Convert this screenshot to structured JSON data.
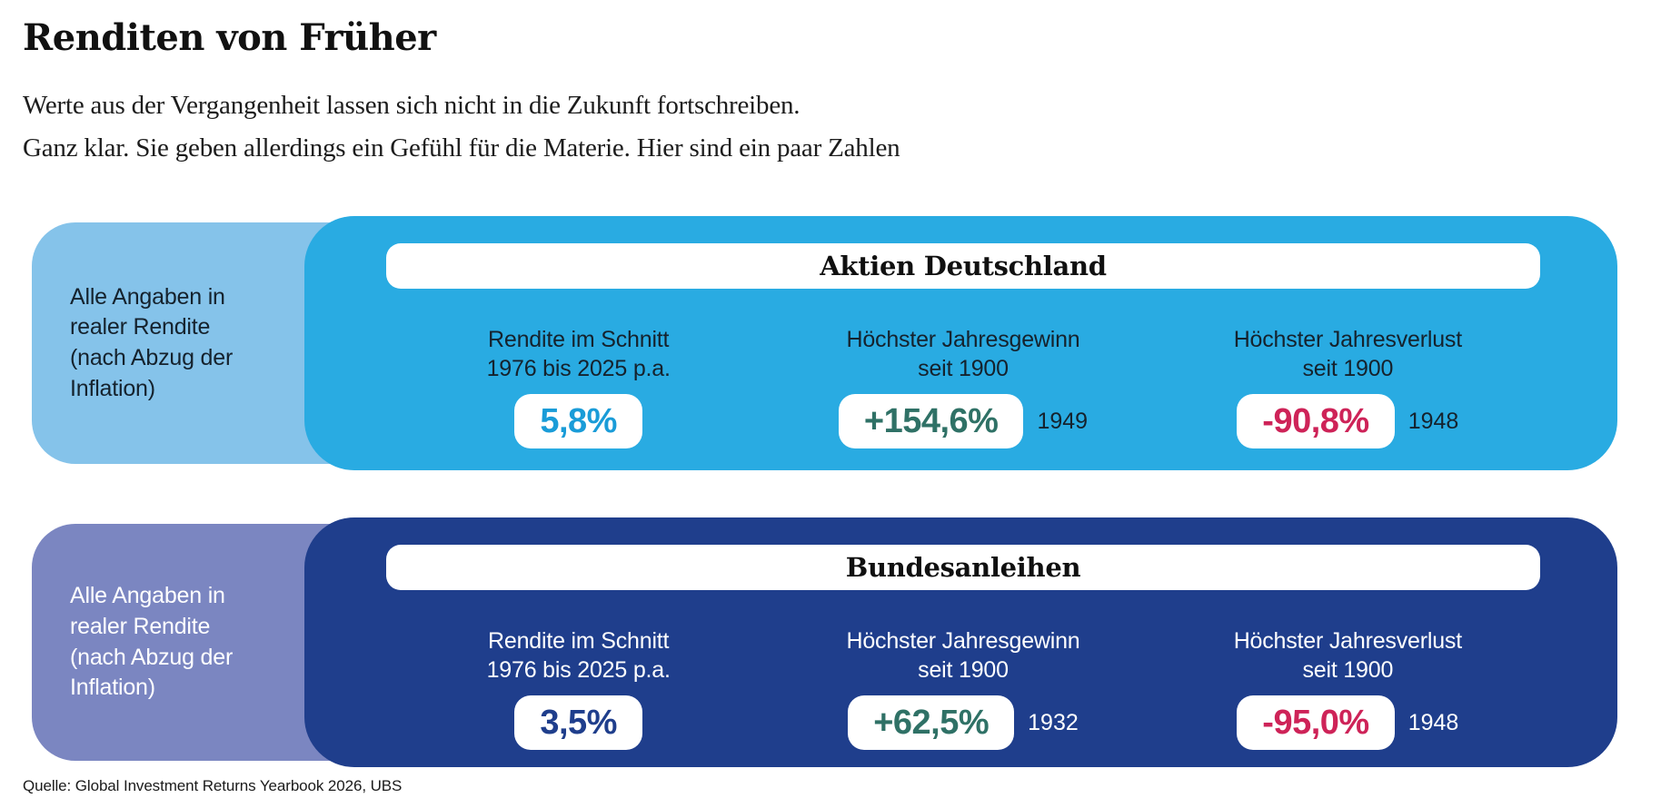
{
  "page": {
    "title": "Renditen von Früher",
    "subtitle_line1": "Werte aus der Vergangenheit lassen sich nicht in die Zukunft fortschreiben.",
    "subtitle_line2": "Ganz klar. Sie geben allerdings ein Gefühl für die Materie. Hier sind ein paar Zahlen",
    "source": "Quelle: Global Investment Returns Yearbook 2026, UBS"
  },
  "colors": {
    "stocks_card": "#29ABE2",
    "stocks_note_panel": "#85C3EA",
    "bonds_card": "#1F3E8C",
    "bonds_note_panel": "#7B86C1",
    "pill_background": "#FFFFFF",
    "value_stocks_avg": "#1A9CD8",
    "value_bonds_avg": "#1F3E8C",
    "value_gain": "#2F7166",
    "value_loss": "#CE2358"
  },
  "cards": [
    {
      "title": "Aktien Deutschland",
      "note": "Alle Angaben in\nrealer Rendite\n(nach Abzug der\nInflation)",
      "cols": [
        {
          "label": "Rendite im Schnitt\n1976 bis 2025 p.a.",
          "value": "5,8%"
        },
        {
          "label": "Höchster Jahresgewinn\nseit 1900",
          "value": "+154,6%",
          "year": "1949"
        },
        {
          "label": "Höchster Jahresverlust\nseit 1900",
          "value": "-90,8%",
          "year": "1948"
        }
      ]
    },
    {
      "title": "Bundesanleihen",
      "note": "Alle Angaben in\nrealer Rendite\n(nach Abzug der\nInflation)",
      "cols": [
        {
          "label": "Rendite im Schnitt\n1976 bis 2025 p.a.",
          "value": "3,5%"
        },
        {
          "label": "Höchster Jahresgewinn\nseit 1900",
          "value": "+62,5%",
          "year": "1932"
        },
        {
          "label": "Höchster Jahresverlust\nseit 1900",
          "value": "-95,0%",
          "year": "1948"
        }
      ]
    }
  ],
  "chart_data": {
    "type": "table",
    "title": "Renditen von Früher",
    "subtitle": "Werte aus der Vergangenheit lassen sich nicht in die Zukunft fortschreiben. Ganz klar. Sie geben allerdings ein Gefühl für die Materie. Hier sind ein paar Zahlen",
    "note": "Alle Angaben in realer Rendite (nach Abzug der Inflation)",
    "source": "Quelle: Global Investment Returns Yearbook 2026, UBS",
    "groups": [
      {
        "name": "Aktien Deutschland",
        "metrics": [
          {
            "label": "Rendite im Schnitt 1976 bis 2025 p.a.",
            "value_percent": 5.8,
            "display": "5,8%"
          },
          {
            "label": "Höchster Jahresgewinn seit 1900",
            "value_percent": 154.6,
            "display": "+154,6%",
            "year": 1949
          },
          {
            "label": "Höchster Jahresverlust seit 1900",
            "value_percent": -90.8,
            "display": "-90,8%",
            "year": 1948
          }
        ]
      },
      {
        "name": "Bundesanleihen",
        "metrics": [
          {
            "label": "Rendite im Schnitt 1976 bis 2025 p.a.",
            "value_percent": 3.5,
            "display": "3,5%"
          },
          {
            "label": "Höchster Jahresgewinn seit 1900",
            "value_percent": 62.5,
            "display": "+62,5%",
            "year": 1932
          },
          {
            "label": "Höchster Jahresverlust seit 1900",
            "value_percent": -95.0,
            "display": "-95,0%",
            "year": 1948
          }
        ]
      }
    ]
  }
}
